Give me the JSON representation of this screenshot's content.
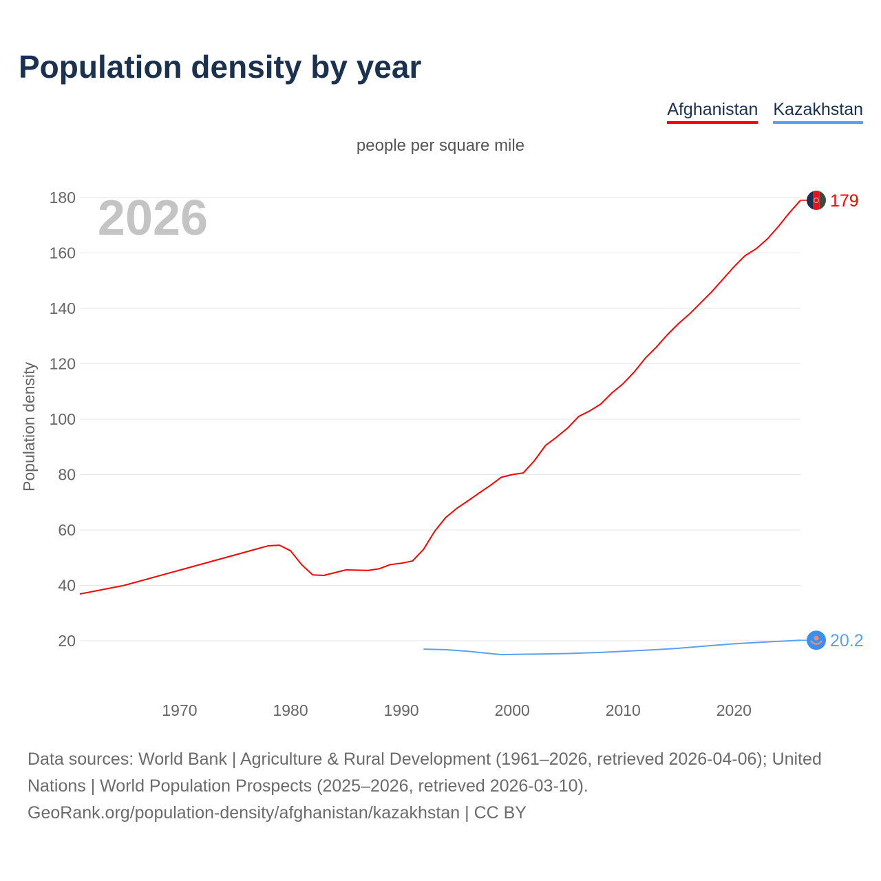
{
  "title": "Population density by year",
  "subtitle": "people per square mile",
  "legend": [
    {
      "label": "Afghanistan",
      "color": "#ff0000"
    },
    {
      "label": "Kazakhstan",
      "color": "#5ba0f0"
    }
  ],
  "footer": {
    "line1": "Data sources: World Bank | Agriculture & Rural Development (1961–2026, retrieved 2026-04-06); United Nations | World Population Prospects (2025–2026, retrieved 2026-03-10).",
    "line2": "GeoRank.org/population-density/afghanistan/kazakhstan | CC BY"
  },
  "chart_data": {
    "type": "line",
    "title": "Population density by year",
    "ylabel": "Population density",
    "xlabel": "",
    "year_label": "2026",
    "xlim": [
      1961,
      2026
    ],
    "ylim": [
      0,
      190
    ],
    "xticks": [
      1970,
      1980,
      1990,
      2000,
      2010,
      2020
    ],
    "yticks": [
      20,
      40,
      60,
      80,
      100,
      120,
      140,
      160,
      180
    ],
    "grid": true,
    "legend_position": "top-right",
    "series": [
      {
        "name": "Afghanistan",
        "color": "#ff0000",
        "end_label": "179",
        "flag": "afghanistan-flag",
        "x": [
          1961,
          1965,
          1970,
          1975,
          1978,
          1979,
          1980,
          1981,
          1982,
          1983,
          1984,
          1985,
          1986,
          1987,
          1988,
          1989,
          1990,
          1991,
          1992,
          1993,
          1994,
          1995,
          1996,
          1997,
          1998,
          1999,
          2000,
          2001,
          2002,
          2003,
          2004,
          2005,
          2006,
          2007,
          2008,
          2009,
          2010,
          2011,
          2012,
          2013,
          2014,
          2015,
          2016,
          2017,
          2018,
          2019,
          2020,
          2021,
          2022,
          2023,
          2024,
          2025,
          2026
        ],
        "y": [
          36.9,
          40,
          45.5,
          51,
          54.3,
          54.5,
          52.5,
          47.5,
          43.8,
          43.6,
          44.6,
          45.6,
          45.5,
          45.4,
          46,
          47.5,
          48,
          48.8,
          53,
          59.5,
          64.5,
          67.8,
          70.5,
          73.3,
          76,
          79,
          80,
          80.6,
          85,
          90.5,
          93.5,
          96.8,
          101,
          103,
          105.5,
          109.5,
          112.8,
          117,
          122,
          126,
          130.5,
          134.5,
          138,
          142,
          146,
          150.5,
          155,
          159,
          161.5,
          165,
          169.5,
          174.5,
          179
        ]
      },
      {
        "name": "Kazakhstan",
        "color": "#5ba0f0",
        "end_label": "20.2",
        "flag": "kazakhstan-flag",
        "x": [
          1992,
          1994,
          1996,
          1999,
          2002,
          2005,
          2008,
          2010,
          2013,
          2015,
          2018,
          2020,
          2023,
          2026
        ],
        "y": [
          17.0,
          16.8,
          16.2,
          15.0,
          15.2,
          15.4,
          15.8,
          16.2,
          16.8,
          17.3,
          18.3,
          18.9,
          19.6,
          20.2
        ]
      }
    ]
  }
}
